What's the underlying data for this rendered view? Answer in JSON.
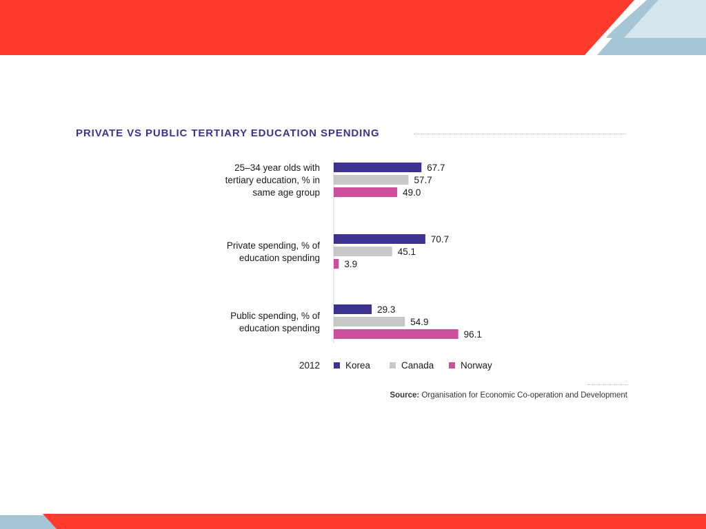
{
  "slide": {
    "colors": {
      "accent_red": "#ff3b2e",
      "accent_blue": "#a6c6d6",
      "accent_blue_light": "#d5e5ee"
    }
  },
  "chart_data": {
    "type": "bar",
    "orientation": "horizontal",
    "title": "PRIVATE VS PUBLIC TERTIARY EDUCATION SPENDING",
    "categories": [
      [
        "25–34 year olds with",
        "tertiary education, % in",
        "same age group"
      ],
      [
        "Private spending, % of",
        "education spending"
      ],
      [
        "Public spending, % of",
        "education spending"
      ]
    ],
    "series": [
      {
        "name": "Korea",
        "color": "#3e3290",
        "values": [
          67.7,
          70.7,
          29.3
        ]
      },
      {
        "name": "Canada",
        "color": "#c8c8c8",
        "values": [
          57.7,
          45.1,
          54.9
        ]
      },
      {
        "name": "Norway",
        "color": "#cc4f9c",
        "values": [
          49.0,
          3.9,
          96.1
        ]
      }
    ],
    "legend_label": "2012",
    "legend_position": "bottom",
    "xlim": [
      0,
      100
    ],
    "grid": false,
    "source_label": "Source:",
    "source_text": "Organisation for Economic Co-operation and Development"
  }
}
